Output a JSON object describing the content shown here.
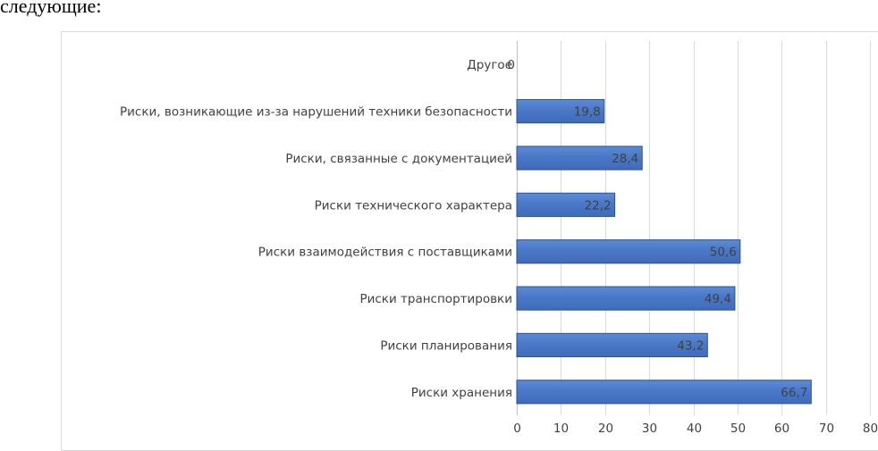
{
  "document": {
    "text_above": "следующие:"
  },
  "chart_data": {
    "type": "bar",
    "orientation": "horizontal",
    "categories": [
      "Другое",
      "Риски, возникающие из-за нарушений техники безопасности",
      "Риски, связанные с документацией",
      "Риски технического характера",
      "Риски взаимодействия с поставщиками",
      "Риски транспортировки",
      "Риски планирования",
      "Риски хранения"
    ],
    "values": [
      0,
      19.8,
      28.4,
      22.2,
      50.6,
      49.4,
      43.2,
      66.7
    ],
    "data_labels": [
      "0",
      "19,8",
      "28,4",
      "22,2",
      "50,6",
      "49,4",
      "43,2",
      "66,7"
    ],
    "x_ticks": [
      "0",
      "10",
      "20",
      "30",
      "40",
      "50",
      "60",
      "70",
      "80"
    ],
    "xlim": [
      0,
      80
    ],
    "grid": true,
    "legend": "none",
    "colors": {
      "bar_fill": "#4472c4",
      "bar_stroke": "#2f528f",
      "grid": "#d9d9d9",
      "text": "#404040"
    }
  }
}
